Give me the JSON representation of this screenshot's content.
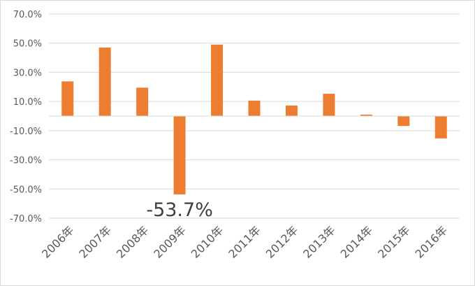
{
  "chart_data": {
    "type": "bar",
    "categories": [
      "2006年",
      "2007年",
      "2008年",
      "2009年",
      "2010年",
      "2011年",
      "2012年",
      "2013年",
      "2014年",
      "2015年",
      "2016年"
    ],
    "values": [
      23.8,
      47.0,
      19.5,
      -53.7,
      49.0,
      10.6,
      7.2,
      15.3,
      1.0,
      -6.8,
      -15.3
    ],
    "ylim": [
      -70,
      70
    ],
    "yticks": [
      70,
      50,
      30,
      10,
      -10,
      -30,
      -50,
      -70
    ],
    "ytick_labels": [
      "70.0%",
      "50.0%",
      "30.0%",
      "10.0%",
      "-10.0%",
      "-30.0%",
      "-50.0%",
      "-70.0%"
    ],
    "grid": true,
    "bar_color": "#ED7D31",
    "grid_color": "#d9d9d9",
    "annotations": [
      {
        "category": "2009年",
        "text": "-53.7%"
      }
    ]
  }
}
